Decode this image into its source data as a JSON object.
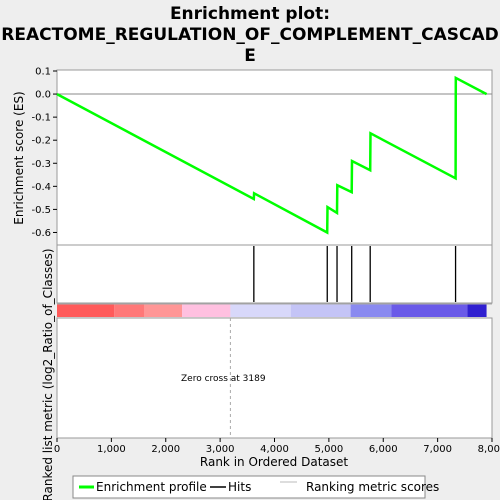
{
  "chart_data": {
    "type": "line",
    "title_line1": "Enrichment plot:",
    "title_line2": "REACTOME_REGULATION_OF_COMPLEMENT_CASCAD",
    "title_line3": "E",
    "xlabel": "Rank in Ordered Dataset",
    "ylabel_top": "Enrichment score (ES)",
    "ylabel_bottom": "Ranked list metric (log2_Ratio_of_Classes)",
    "xlim": [
      0,
      8000
    ],
    "ylim": [
      -0.65,
      0.1
    ],
    "x_ticks": [
      0,
      1000,
      2000,
      3000,
      4000,
      5000,
      6000,
      7000,
      8000
    ],
    "x_tick_labels": [
      "0",
      "1,000",
      "2,000",
      "3,000",
      "4,000",
      "5,000",
      "6,000",
      "7,000",
      "8,000"
    ],
    "y_ticks": [
      0.1,
      0.0,
      -0.1,
      -0.2,
      -0.3,
      -0.4,
      -0.5,
      -0.6
    ],
    "y_tick_labels": [
      "0.1",
      "0.0",
      "-0.1",
      "-0.2",
      "-0.3",
      "-0.4",
      "-0.5",
      "-0.6"
    ],
    "series": [
      {
        "name": "Enrichment profile",
        "color": "#00ff00",
        "x": [
          0,
          3620,
          3625,
          4970,
          4975,
          5150,
          5155,
          5420,
          5425,
          5760,
          5765,
          7330,
          7335,
          7900
        ],
        "y": [
          0.0,
          -0.455,
          -0.43,
          -0.6,
          -0.49,
          -0.515,
          -0.395,
          -0.425,
          -0.29,
          -0.33,
          -0.17,
          -0.365,
          0.07,
          0.0
        ]
      }
    ],
    "hits": [
      3620,
      4970,
      5150,
      5420,
      5760,
      7330
    ],
    "zero_cross_rank": 3189,
    "annotation": "Zero cross at 3189",
    "metric_bar": [
      {
        "x0": 0,
        "x1": 1050,
        "color": "#ff5a5a"
      },
      {
        "x0": 1050,
        "x1": 1600,
        "color": "#ff7878"
      },
      {
        "x0": 1600,
        "x1": 2300,
        "color": "#ff9696"
      },
      {
        "x0": 2300,
        "x1": 3189,
        "color": "#ffc0e0"
      },
      {
        "x0": 3189,
        "x1": 4300,
        "color": "#d8d8fa"
      },
      {
        "x0": 4300,
        "x1": 5400,
        "color": "#c4c4f6"
      },
      {
        "x0": 5400,
        "x1": 6150,
        "color": "#8a8af0"
      },
      {
        "x0": 6150,
        "x1": 7550,
        "color": "#6a5ae8"
      },
      {
        "x0": 7550,
        "x1": 7900,
        "color": "#3020d0"
      }
    ],
    "legend": [
      {
        "label": "Enrichment profile",
        "color": "#00ff00"
      },
      {
        "label": "Hits",
        "color": "#000000"
      },
      {
        "label": "Ranking metric scores",
        "color": "#bbbbbb"
      }
    ],
    "legend_position": "bottom",
    "grid": false
  }
}
